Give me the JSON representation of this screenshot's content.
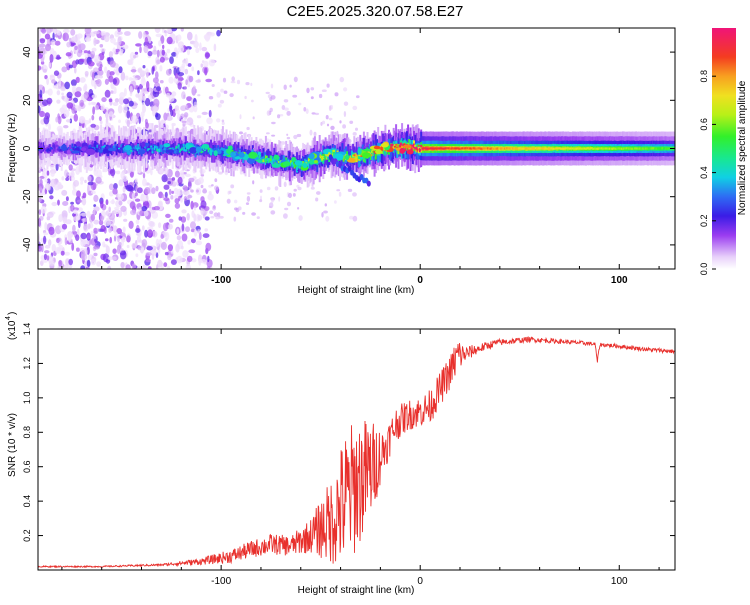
{
  "title": "C2E5.2025.320.07.58.E27",
  "chart_data": [
    {
      "type": "heatmap",
      "name": "spectrogram",
      "xlabel": "Height of straight line (km)",
      "ylabel": "Frequency (Hz)",
      "xlim": [
        -192,
        128
      ],
      "ylim": [
        -50,
        50
      ],
      "xticks": [
        -100,
        0,
        100
      ],
      "yticks": [
        -40,
        -20,
        0,
        20,
        40
      ],
      "colorbar": {
        "label": "Normalized spectral amplitude",
        "range": [
          0,
          1
        ],
        "ticks": [
          0.0,
          0.2,
          0.4,
          0.6,
          0.8
        ]
      },
      "features": {
        "noise_region_x": [
          -192,
          -120
        ],
        "ridge_center_hz": [
          {
            "x": -180,
            "f": 0
          },
          {
            "x": -120,
            "f": 0
          },
          {
            "x": -100,
            "f": -1
          },
          {
            "x": -80,
            "f": -4
          },
          {
            "x": -60,
            "f": -7
          },
          {
            "x": -45,
            "f": -2
          },
          {
            "x": -35,
            "f": -4
          },
          {
            "x": -22,
            "f": -1
          },
          {
            "x": -10,
            "f": 1
          },
          {
            "x": 0,
            "f": 0
          },
          {
            "x": 128,
            "f": 0
          }
        ],
        "ridge_peak_amplitude": [
          {
            "x": -180,
            "a": 0.25
          },
          {
            "x": -100,
            "a": 0.45
          },
          {
            "x": -60,
            "a": 0.55
          },
          {
            "x": -22,
            "a": 0.8
          },
          {
            "x": 0,
            "a": 0.95
          },
          {
            "x": 50,
            "a": 0.75
          },
          {
            "x": 128,
            "a": 0.55
          }
        ]
      }
    },
    {
      "type": "line",
      "name": "snr",
      "xlabel": "Height of straight line (km)",
      "ylabel": "SNR (10 * v/v)",
      "y_scale_label": "(x10",
      "y_scale_exponent": "4",
      "xlim": [
        -192,
        128
      ],
      "ylim": [
        0,
        1.4
      ],
      "xticks": [
        -100,
        0,
        100
      ],
      "yticks": [
        0.2,
        0.4,
        0.6,
        0.8,
        1.0,
        1.2,
        1.4
      ],
      "color": "#e8302c",
      "series": [
        {
          "name": "SNR",
          "x": [
            -192,
            -160,
            -130,
            -110,
            -95,
            -85,
            -75,
            -65,
            -55,
            -45,
            -38,
            -32,
            -25,
            -18,
            -12,
            -6,
            0,
            5,
            10,
            15,
            19,
            22,
            28,
            38,
            55,
            80,
            100,
            115,
            128
          ],
          "y": [
            0.02,
            0.02,
            0.03,
            0.05,
            0.08,
            0.12,
            0.15,
            0.14,
            0.2,
            0.28,
            0.4,
            0.5,
            0.58,
            0.7,
            0.85,
            0.9,
            0.92,
            0.95,
            1.05,
            1.15,
            1.25,
            1.25,
            1.28,
            1.32,
            1.34,
            1.32,
            1.3,
            1.28,
            1.27
          ],
          "noise": [
            0.004,
            0.004,
            0.006,
            0.02,
            0.04,
            0.05,
            0.06,
            0.06,
            0.1,
            0.25,
            0.4,
            0.4,
            0.3,
            0.12,
            0.1,
            0.09,
            0.09,
            0.1,
            0.1,
            0.1,
            0.12,
            0.05,
            0.03,
            0.02,
            0.015,
            0.012,
            0.012,
            0.012,
            0.012
          ]
        }
      ]
    }
  ]
}
